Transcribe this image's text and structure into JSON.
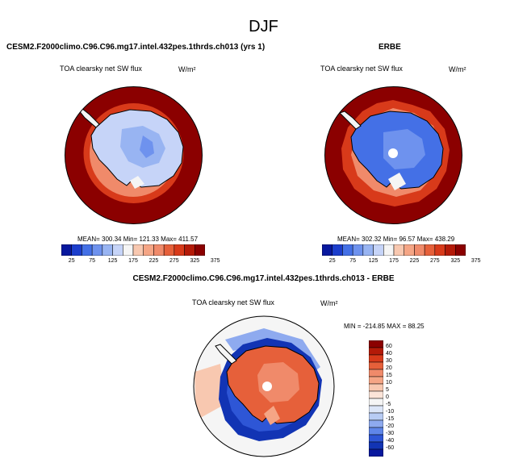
{
  "season": "DJF",
  "left_panel": {
    "title": "CESM2.F2000climo.C96.C96.mg17.intel.432pes.1thrds.ch013 (yrs 1)",
    "variable": "TOA clearsky net SW flux",
    "units": "W/m²",
    "stats": "MEAN= 300.34   Min= 121.33   Max= 411.57"
  },
  "right_panel": {
    "title": "ERBE",
    "variable": "TOA clearsky net SW flux",
    "units": "W/m²",
    "stats": "MEAN= 302.32   Min= 96.57   Max= 438.29"
  },
  "diff_panel": {
    "title": "CESM2.F2000climo.C96.C96.mg17.intel.432pes.1thrds.ch013 - ERBE",
    "variable": "TOA clearsky net SW flux",
    "units": "W/m²",
    "stats": "MIN = -214.85   MAX =  88.25"
  },
  "colors": {
    "dark_red": "#8b0000",
    "mid_red": "#d83a1a",
    "light_red": "#f08a6a",
    "pale_red": "#f8c8b0",
    "ice_light": "#c6d4f8",
    "ice_mid": "#98b4f2",
    "ice_blue": "#4470e6",
    "deep_blue": "#08189e"
  },
  "chart_data": [
    {
      "type": "heatmap",
      "title": "CESM2.F2000climo.C96.C96.mg17.intel.432pes.1thrds.ch013 (yrs 1)",
      "projection": "south-polar-stereographic",
      "legend_placement": "bottom",
      "colorbar_ticks": [
        "25",
        "75",
        "125",
        "175",
        "225",
        "275",
        "325",
        "375"
      ],
      "colorbar_colors": [
        "#08189e",
        "#1c3ecc",
        "#4470e6",
        "#6e92ee",
        "#98b4f2",
        "#c6d4f8",
        "#f5f5f5",
        "#f8c8b0",
        "#f5a585",
        "#f08a6a",
        "#e6603a",
        "#d83a1a",
        "#b41a08",
        "#8b0000"
      ],
      "mean": 300.34,
      "min": 121.33,
      "max": 411.57
    },
    {
      "type": "heatmap",
      "title": "ERBE",
      "projection": "south-polar-stereographic",
      "legend_placement": "bottom",
      "colorbar_ticks": [
        "25",
        "75",
        "125",
        "175",
        "225",
        "275",
        "325",
        "375"
      ],
      "colorbar_colors": [
        "#08189e",
        "#1c3ecc",
        "#4470e6",
        "#6e92ee",
        "#98b4f2",
        "#c6d4f8",
        "#f5f5f5",
        "#f8c8b0",
        "#f5a585",
        "#f08a6a",
        "#e6603a",
        "#d83a1a",
        "#b41a08",
        "#8b0000"
      ],
      "mean": 302.32,
      "min": 96.57,
      "max": 438.29
    },
    {
      "type": "heatmap",
      "title": "CESM2.F2000climo.C96.C96.mg17.intel.432pes.1thrds.ch013 - ERBE",
      "projection": "south-polar-stereographic",
      "legend_placement": "right",
      "colorbar_ticks": [
        "60",
        "40",
        "30",
        "20",
        "15",
        "10",
        "5",
        "0",
        "-5",
        "-10",
        "-15",
        "-20",
        "-30",
        "-40",
        "-60"
      ],
      "colorbar_colors": [
        "#8b0000",
        "#b41a08",
        "#d83a1a",
        "#e6603a",
        "#f08a6a",
        "#f5a585",
        "#f8c8b0",
        "#fbe4d8",
        "#f5f5f5",
        "#dce6f8",
        "#b8ccf4",
        "#8eaaef",
        "#5f86e9",
        "#2e56d6",
        "#1234b4",
        "#08189e"
      ],
      "min": -214.85,
      "max": 88.25
    }
  ]
}
